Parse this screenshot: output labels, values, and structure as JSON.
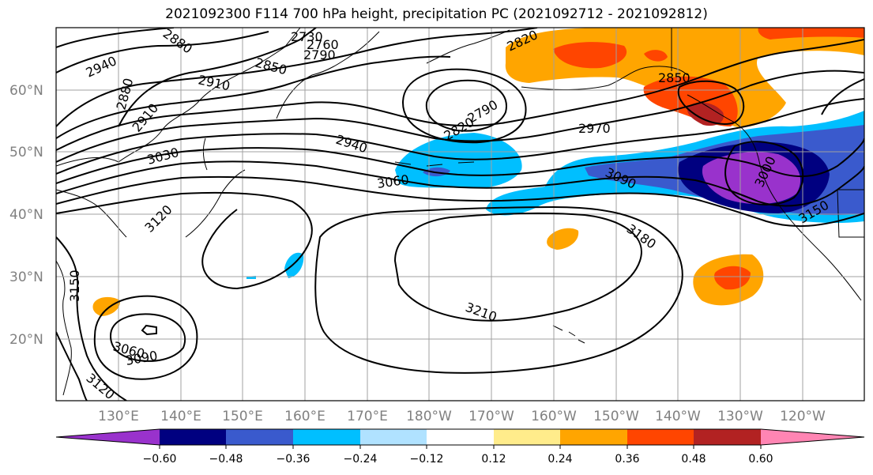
{
  "title": "2021092300 F114 700 hPa height, precipitation PC (2021092712 - 2021092812)",
  "lat_labels": [
    "60°N",
    "50°N",
    "40°N",
    "30°N",
    "20°N"
  ],
  "lon_labels": [
    "130°E",
    "140°E",
    "150°E",
    "160°E",
    "170°E",
    "180°W",
    "170°W",
    "160°W",
    "150°W",
    "140°W",
    "130°W",
    "120°W"
  ],
  "contour_labels": [
    "2730",
    "2760",
    "2790",
    "2820",
    "2850",
    "2850",
    "2880",
    "2880",
    "2910",
    "2910",
    "2940",
    "2940",
    "2970",
    "3030",
    "3060",
    "3060",
    "3090",
    "3090",
    "3120",
    "3120",
    "3150",
    "3150",
    "3180",
    "3210",
    "2790",
    "2820",
    "3000"
  ],
  "colorbar": {
    "ticks": [
      "−0.60",
      "−0.48",
      "−0.36",
      "−0.24",
      "−0.12",
      "0.12",
      "0.24",
      "0.36",
      "0.48",
      "0.60"
    ],
    "colors": [
      "#9932cc",
      "#000080",
      "#3a5acd",
      "#00bfff",
      "#b0e2ff",
      "#ffffff",
      "#ffec8b",
      "#ffa500",
      "#ff4500",
      "#b22222",
      "#ff85b3"
    ]
  },
  "colors": {
    "land_outline": "#000000",
    "grid": "#a0a0a0",
    "contour": "#000000"
  }
}
